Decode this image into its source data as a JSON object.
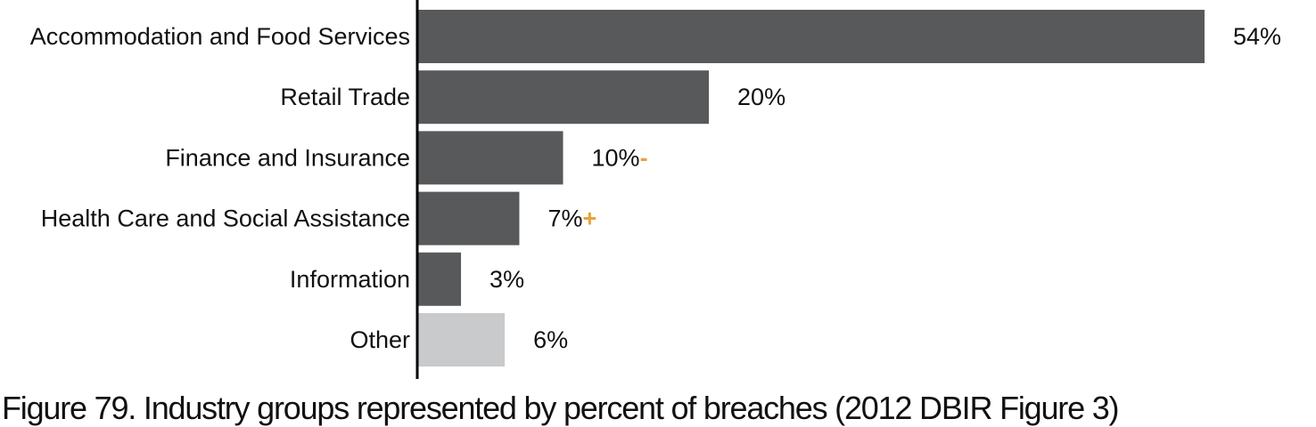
{
  "caption": "Figure 79. Industry groups represented by percent of breaches (2012 DBIR Figure 3)",
  "chart_data": {
    "type": "bar",
    "orientation": "horizontal",
    "title": "",
    "xlabel": "",
    "ylabel": "",
    "xlim": [
      0,
      54
    ],
    "categories": [
      "Accommodation and Food Services",
      "Retail Trade",
      "Finance and Insurance",
      "Health Care and Social Assistance",
      "Information",
      "Other"
    ],
    "values": [
      54,
      20,
      10,
      7,
      3,
      6
    ],
    "value_labels": [
      "54%",
      "20%",
      "10%",
      "7%",
      "3%",
      "6%"
    ],
    "trend_marks": [
      "",
      "",
      "-",
      "+",
      "",
      ""
    ],
    "bar_colors": [
      "#58595b",
      "#58595b",
      "#58595b",
      "#58595b",
      "#58595b",
      "#c9cacc"
    ],
    "trend_color": "#e8a33d",
    "axis_color": "#000000",
    "grid": false,
    "legend": "none"
  }
}
